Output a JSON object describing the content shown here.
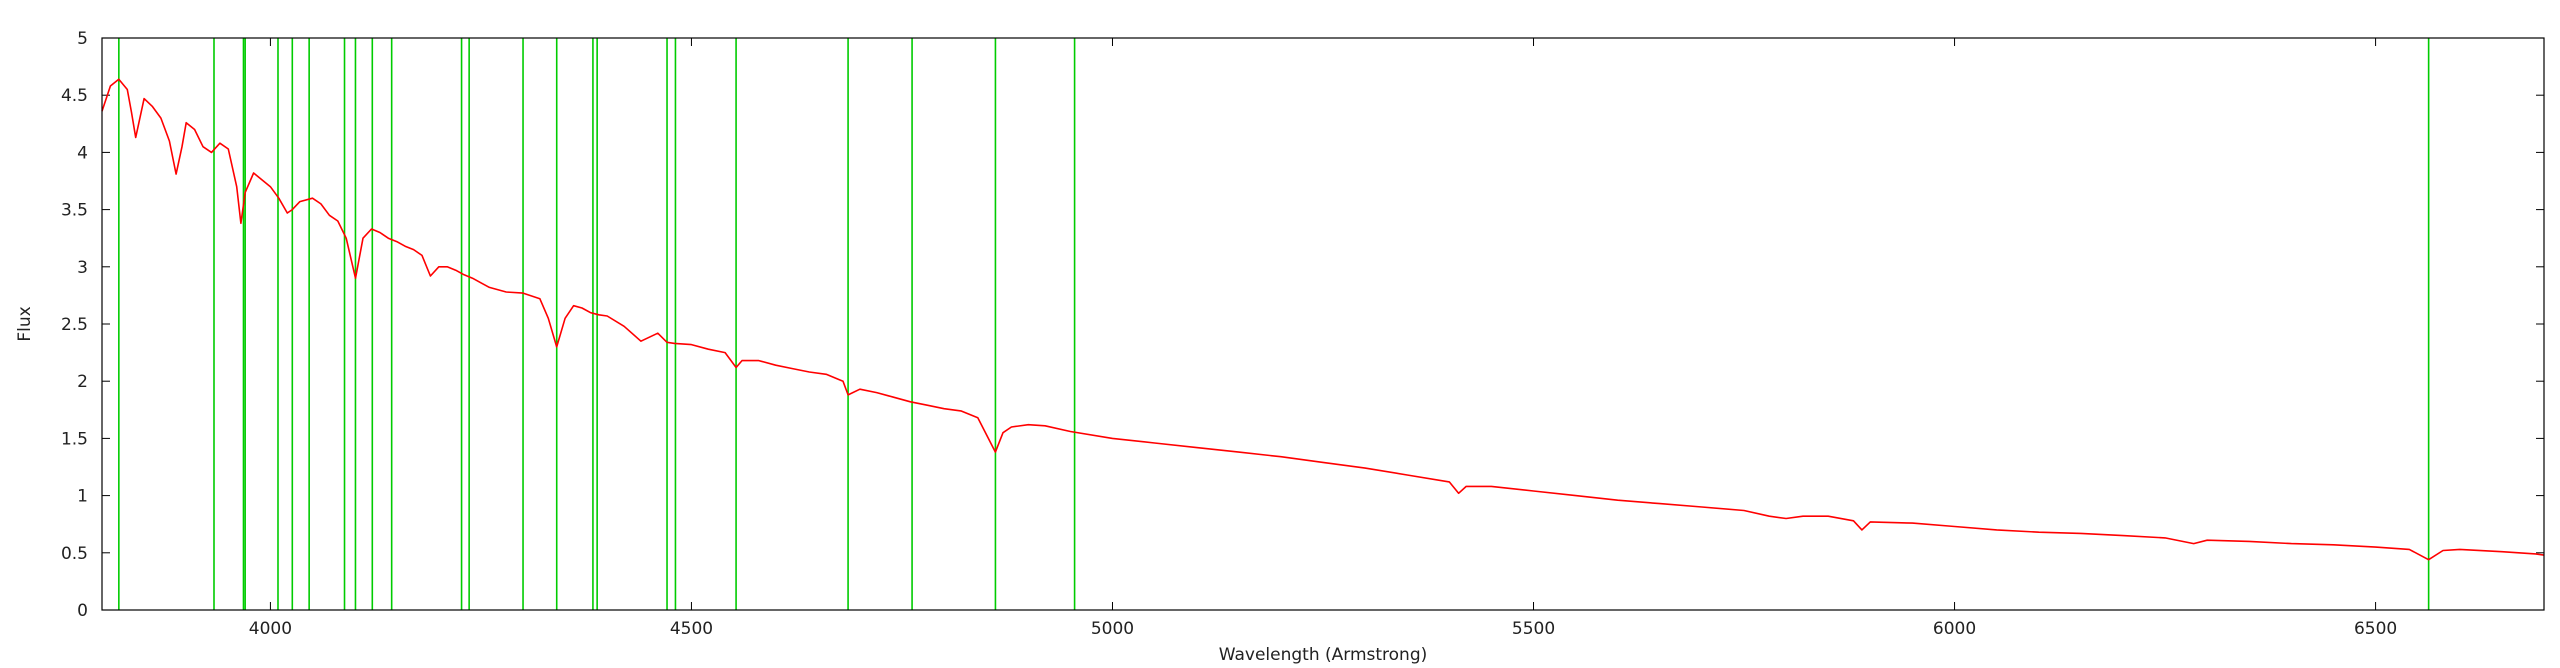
{
  "chart_data": {
    "type": "line",
    "title": "",
    "xlabel": "Wavelength (Armstrong)",
    "ylabel": "Flux",
    "xlim": [
      3800,
      6700
    ],
    "ylim": [
      0,
      5
    ],
    "x_ticks": [
      4000,
      4500,
      5000,
      5500,
      6000,
      6500
    ],
    "y_ticks": [
      0,
      0.5,
      1,
      1.5,
      2,
      2.5,
      3,
      3.5,
      4,
      4.5,
      5
    ],
    "y_tick_labels": [
      "0",
      "0.5",
      "1",
      "1.5",
      "2",
      "2.5",
      "3",
      "3.5",
      "4",
      "4.5",
      "5"
    ],
    "grid": false,
    "series": [
      {
        "color": "#ff0000",
        "x": [
          3800,
          3810,
          3820,
          3830,
          3835,
          3840,
          3850,
          3860,
          3870,
          3880,
          3888,
          3895,
          3900,
          3910,
          3920,
          3930,
          3940,
          3950,
          3960,
          3965,
          3970,
          3980,
          3990,
          4000,
          4010,
          4020,
          4026,
          4035,
          4050,
          4060,
          4070,
          4080,
          4090,
          4101,
          4110,
          4120,
          4130,
          4140,
          4150,
          4160,
          4170,
          4180,
          4190,
          4200,
          4210,
          4220,
          4230,
          4240,
          4250,
          4260,
          4280,
          4300,
          4320,
          4330,
          4340,
          4350,
          4360,
          4370,
          4380,
          4390,
          4400,
          4420,
          4440,
          4460,
          4471,
          4480,
          4500,
          4520,
          4540,
          4553,
          4560,
          4580,
          4600,
          4620,
          4640,
          4660,
          4680,
          4686,
          4700,
          4720,
          4740,
          4760,
          4780,
          4800,
          4820,
          4840,
          4861,
          4870,
          4880,
          4900,
          4920,
          4950,
          5000,
          5050,
          5100,
          5150,
          5200,
          5250,
          5300,
          5350,
          5400,
          5411,
          5420,
          5450,
          5500,
          5550,
          5600,
          5650,
          5700,
          5750,
          5780,
          5800,
          5820,
          5850,
          5880,
          5890,
          5900,
          5950,
          6000,
          6050,
          6100,
          6150,
          6200,
          6250,
          6284,
          6300,
          6350,
          6400,
          6450,
          6500,
          6540,
          6563,
          6580,
          6600,
          6650,
          6690,
          6700
        ],
        "y": [
          4.36,
          4.58,
          4.64,
          4.55,
          4.35,
          4.13,
          4.47,
          4.4,
          4.3,
          4.1,
          3.81,
          4.05,
          4.26,
          4.2,
          4.05,
          4.0,
          4.08,
          4.03,
          3.7,
          3.38,
          3.65,
          3.82,
          3.76,
          3.7,
          3.6,
          3.47,
          3.5,
          3.57,
          3.6,
          3.55,
          3.45,
          3.4,
          3.25,
          2.9,
          3.25,
          3.33,
          3.3,
          3.25,
          3.22,
          3.18,
          3.15,
          3.1,
          2.92,
          3.0,
          3.0,
          2.97,
          2.93,
          2.9,
          2.86,
          2.82,
          2.78,
          2.77,
          2.72,
          2.55,
          2.3,
          2.55,
          2.66,
          2.64,
          2.6,
          2.58,
          2.57,
          2.48,
          2.35,
          2.42,
          2.34,
          2.33,
          2.32,
          2.28,
          2.25,
          2.12,
          2.18,
          2.18,
          2.14,
          2.11,
          2.08,
          2.06,
          2.0,
          1.88,
          1.93,
          1.9,
          1.86,
          1.82,
          1.79,
          1.76,
          1.74,
          1.68,
          1.38,
          1.55,
          1.6,
          1.62,
          1.61,
          1.56,
          1.5,
          1.46,
          1.42,
          1.38,
          1.34,
          1.29,
          1.24,
          1.18,
          1.12,
          1.02,
          1.08,
          1.08,
          1.04,
          1.0,
          0.96,
          0.93,
          0.9,
          0.87,
          0.82,
          0.8,
          0.82,
          0.82,
          0.78,
          0.7,
          0.77,
          0.76,
          0.73,
          0.7,
          0.68,
          0.67,
          0.65,
          0.63,
          0.58,
          0.61,
          0.6,
          0.58,
          0.57,
          0.55,
          0.53,
          0.44,
          0.52,
          0.53,
          0.51,
          0.49,
          0.48
        ]
      }
    ],
    "vertical_lines": {
      "color": "#00cc00",
      "x": [
        3820,
        3933,
        3968,
        3970,
        4009,
        4026,
        4046,
        4088,
        4101,
        4121,
        4144,
        4227,
        4236,
        4300,
        4340,
        4383,
        4388,
        4471,
        4481,
        4553,
        4686,
        4762,
        4861,
        4955,
        6563
      ]
    }
  }
}
